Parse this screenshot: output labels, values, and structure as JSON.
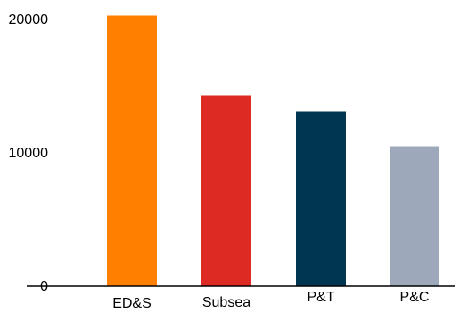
{
  "chart_data": {
    "type": "bar",
    "title": "",
    "xlabel": "",
    "ylabel": "",
    "categories": [
      "ED&S",
      "Subsea",
      "P&T",
      "P&C"
    ],
    "values": [
      20300,
      14300,
      13100,
      10500
    ],
    "colors": [
      "#FF8000",
      "#DD2A22",
      "#003650",
      "#9DA9BA"
    ],
    "ylim": [
      0,
      20000
    ],
    "yticks": [
      {
        "value": 0,
        "label": "0"
      },
      {
        "value": 10000,
        "label": "10000"
      },
      {
        "value": 20000,
        "label": "20000"
      }
    ],
    "grid": false,
    "legend": "none"
  }
}
